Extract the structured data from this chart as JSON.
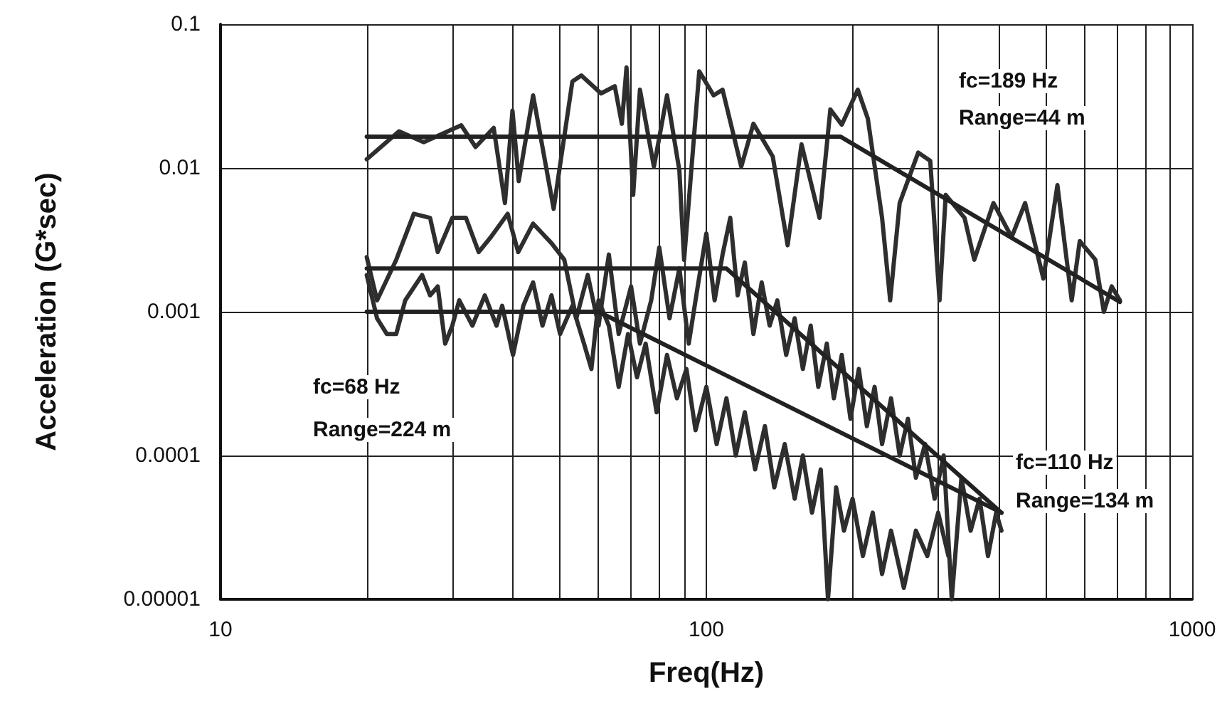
{
  "chart_data": {
    "type": "line",
    "xlabel": "Freq(Hz)",
    "ylabel": "Acceleration (G*sec)",
    "log": "xy",
    "grid": true,
    "marker": "none",
    "line_style": "solid",
    "xlim": [
      10,
      1000
    ],
    "ylim": [
      1e-05,
      0.1
    ],
    "xticks": [
      10,
      {
        "value": 20,
        "label": null
      },
      {
        "value": 30,
        "label": null
      },
      {
        "value": 40,
        "label": null
      },
      {
        "value": 50,
        "label": null
      },
      {
        "value": 60,
        "label": null
      },
      {
        "value": 70,
        "label": null
      },
      {
        "value": 80,
        "label": null
      },
      {
        "value": 90,
        "label": null
      },
      100,
      {
        "value": 200,
        "label": null
      },
      {
        "value": 300,
        "label": null
      },
      {
        "value": 400,
        "label": null
      },
      {
        "value": 500,
        "label": null
      },
      {
        "value": 600,
        "label": null
      },
      {
        "value": 700,
        "label": null
      },
      {
        "value": 800,
        "label": null
      },
      {
        "value": 900,
        "label": null
      },
      1000
    ],
    "yticks": [
      {
        "value": 1e-05,
        "label": "0.00001"
      },
      {
        "value": 0.0001,
        "label": "0.0001"
      },
      {
        "value": 0.001,
        "label": "0.001"
      },
      {
        "value": 0.01,
        "label": "0.01"
      },
      {
        "value": 0.1,
        "label": "0.1"
      }
    ],
    "series": [
      {
        "color": "#2e2e2e",
        "x": [
          20,
          23.3,
          26.2,
          31.3,
          33.5,
          36.5,
          38.5,
          39.9,
          41.1,
          44,
          48.5,
          53,
          55.3,
          60.7,
          64.8,
          67,
          68.5,
          70.7,
          73,
          78,
          83,
          88,
          90,
          96.7,
          103.5,
          108,
          118,
          125,
          137,
          147,
          157,
          171,
          180,
          190,
          205,
          215,
          230,
          239,
          250,
          273,
          289,
          302,
          311,
          340,
          356,
          390,
          425,
          453,
          494,
          528,
          565,
          587,
          632,
          658,
          683,
          710
        ],
        "values": [
          0.0115,
          0.018,
          0.0151,
          0.0198,
          0.014,
          0.019,
          0.0057,
          0.025,
          0.0081,
          0.032,
          0.0052,
          0.04,
          0.044,
          0.033,
          0.037,
          0.0203,
          0.05,
          0.0065,
          0.035,
          0.0102,
          0.032,
          0.0096,
          0.0023,
          0.047,
          0.032,
          0.035,
          0.0102,
          0.0203,
          0.012,
          0.0029,
          0.0146,
          0.0045,
          0.0255,
          0.02,
          0.035,
          0.022,
          0.0045,
          0.0012,
          0.0057,
          0.0128,
          0.0112,
          0.0012,
          0.0065,
          0.0045,
          0.0023,
          0.0057,
          0.0033,
          0.0057,
          0.0017,
          0.0076,
          0.0012,
          0.0031,
          0.0023,
          0.001,
          0.0015,
          0.0012
        ]
      },
      {
        "color": "#2e2e2e",
        "x": [
          20,
          21,
          23,
          25,
          27,
          28,
          30,
          32,
          34,
          36,
          39,
          41,
          44,
          48,
          51,
          54,
          57,
          60,
          63,
          66,
          70,
          73,
          77,
          80,
          84,
          88,
          92,
          96,
          100,
          104,
          108,
          112,
          116,
          120,
          125,
          130,
          135,
          140,
          146,
          152,
          158,
          164,
          170,
          177,
          183,
          190,
          198,
          206,
          214,
          222,
          230,
          240,
          250,
          260,
          270,
          282,
          295,
          308,
          320,
          335,
          350,
          365,
          380,
          395,
          405
        ],
        "values": [
          0.0024,
          0.0012,
          0.0023,
          0.0048,
          0.0045,
          0.0026,
          0.0045,
          0.0045,
          0.0026,
          0.0033,
          0.0048,
          0.0026,
          0.0041,
          0.003,
          0.0023,
          0.0009,
          0.0018,
          0.0008,
          0.0025,
          0.0007,
          0.0015,
          0.0006,
          0.0012,
          0.0028,
          0.0009,
          0.002,
          0.0006,
          0.0015,
          0.0035,
          0.0012,
          0.0025,
          0.0045,
          0.0013,
          0.0022,
          0.0007,
          0.0016,
          0.0008,
          0.0012,
          0.0005,
          0.0009,
          0.0004,
          0.0008,
          0.0003,
          0.0006,
          0.00025,
          0.0005,
          0.00018,
          0.0004,
          0.00016,
          0.0003,
          0.00012,
          0.00025,
          0.0001,
          0.00018,
          7e-05,
          0.00012,
          5e-05,
          0.0001,
          1e-05,
          7e-05,
          3e-05,
          5e-05,
          2e-05,
          4e-05,
          3e-05
        ]
      },
      {
        "color": "#2e2e2e",
        "x": [
          20,
          21,
          22,
          23,
          24,
          26,
          27,
          28,
          29,
          30,
          31,
          33,
          35,
          37,
          38,
          40,
          42,
          44,
          46,
          48,
          50,
          53,
          56,
          58,
          60,
          63,
          66,
          69,
          72,
          75,
          79,
          83,
          87,
          91,
          95,
          100,
          105,
          110,
          115,
          120,
          126,
          132,
          138,
          145,
          152,
          158,
          165,
          172,
          178,
          185,
          192,
          200,
          210,
          220,
          230,
          240,
          255,
          270,
          285,
          300,
          315
        ],
        "values": [
          0.0018,
          0.0009,
          0.0007,
          0.0007,
          0.0012,
          0.0018,
          0.0013,
          0.0015,
          0.0006,
          0.0008,
          0.0012,
          0.0008,
          0.0013,
          0.0008,
          0.0011,
          0.0005,
          0.0011,
          0.0016,
          0.0008,
          0.0013,
          0.0007,
          0.0011,
          0.0006,
          0.0004,
          0.0012,
          0.0008,
          0.0003,
          0.0007,
          0.00035,
          0.0006,
          0.0002,
          0.0005,
          0.00025,
          0.0004,
          0.00015,
          0.0003,
          0.00012,
          0.00025,
          0.0001,
          0.0002,
          8e-05,
          0.00016,
          6e-05,
          0.00012,
          5e-05,
          0.0001,
          4e-05,
          8e-05,
          1e-05,
          6e-05,
          3e-05,
          5e-05,
          2e-05,
          4e-05,
          1.5e-05,
          3e-05,
          1.2e-05,
          3e-05,
          2e-05,
          4e-05,
          2e-05
        ]
      },
      {
        "color": "#222222",
        "x": [
          20,
          189,
          710
        ],
        "values": [
          0.0165,
          0.0165,
          0.00117
        ]
      },
      {
        "color": "#222222",
        "x": [
          20,
          110,
          405
        ],
        "values": [
          0.002,
          0.002,
          4e-05
        ]
      },
      {
        "color": "#222222",
        "x": [
          20,
          60,
          405
        ],
        "values": [
          0.001,
          0.001,
          4e-05
        ]
      }
    ],
    "annotations": [
      "fc=189 Hz",
      "Range=44 m",
      "fc=68 Hz",
      "Range=224 m",
      "fc=110 Hz",
      "Range=134 m"
    ]
  }
}
